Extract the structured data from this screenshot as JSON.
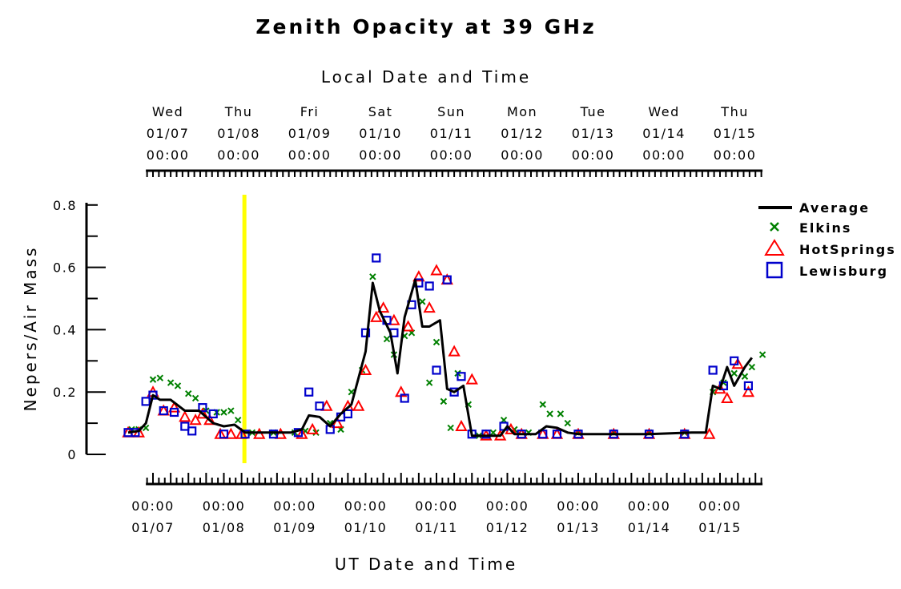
{
  "chart_data": {
    "type": "line",
    "title": "Zenith Opacity at 39 GHz",
    "top_axis_title": "Local Date and Time",
    "xlabel": "UT Date and Time",
    "ylabel": "Nepers/Air Mass",
    "ylim": [
      0,
      0.8
    ],
    "yticks": [
      0,
      0.2,
      0.4,
      0.6,
      0.8
    ],
    "ytick_labels": [
      "0",
      "0.2",
      "0.4",
      "0.6",
      "0.8"
    ],
    "xlim": [
      -0.1,
      8.6
    ],
    "top_ticks": [
      {
        "day": "Wed",
        "date": "01/07",
        "time": "00:00",
        "x": 0.21
      },
      {
        "day": "Thu",
        "date": "01/08",
        "time": "00:00",
        "x": 1.21
      },
      {
        "day": "Fri",
        "date": "01/09",
        "time": "00:00",
        "x": 2.21
      },
      {
        "day": "Sat",
        "date": "01/10",
        "time": "00:00",
        "x": 3.21
      },
      {
        "day": "Sun",
        "date": "01/11",
        "time": "00:00",
        "x": 4.21
      },
      {
        "day": "Mon",
        "date": "01/12",
        "time": "00:00",
        "x": 5.21
      },
      {
        "day": "Tue",
        "date": "01/13",
        "time": "00:00",
        "x": 6.21
      },
      {
        "day": "Wed",
        "date": "01/14",
        "time": "00:00",
        "x": 7.21
      },
      {
        "day": "Thu",
        "date": "01/15",
        "time": "00:00",
        "x": 8.21
      }
    ],
    "bottom_ticks": [
      {
        "time": "00:00",
        "date": "01/07",
        "x": 0
      },
      {
        "time": "00:00",
        "date": "01/08",
        "x": 1
      },
      {
        "time": "00:00",
        "date": "01/09",
        "x": 2
      },
      {
        "time": "00:00",
        "date": "01/10",
        "x": 3
      },
      {
        "time": "00:00",
        "date": "01/11",
        "x": 4
      },
      {
        "time": "00:00",
        "date": "01/12",
        "x": 5
      },
      {
        "time": "00:00",
        "date": "01/13",
        "x": 6
      },
      {
        "time": "00:00",
        "date": "01/14",
        "x": 7
      },
      {
        "time": "00:00",
        "date": "01/15",
        "x": 8
      }
    ],
    "x_units": "days since 01/07 00:00 UT",
    "current_time_marker": {
      "x": 1.29,
      "color": "#ffff00"
    },
    "legend_position": "right",
    "series": [
      {
        "name": "Average",
        "color": "#000000",
        "marker": "line",
        "points": [
          [
            -0.35,
            0.07
          ],
          [
            -0.2,
            0.075
          ],
          [
            -0.1,
            0.1
          ],
          [
            0.0,
            0.19
          ],
          [
            0.1,
            0.175
          ],
          [
            0.25,
            0.175
          ],
          [
            0.45,
            0.14
          ],
          [
            0.65,
            0.14
          ],
          [
            0.85,
            0.1
          ],
          [
            1.0,
            0.09
          ],
          [
            1.15,
            0.095
          ],
          [
            1.3,
            0.07
          ],
          [
            1.6,
            0.07
          ],
          [
            1.95,
            0.07
          ],
          [
            2.1,
            0.08
          ],
          [
            2.2,
            0.125
          ],
          [
            2.35,
            0.12
          ],
          [
            2.5,
            0.09
          ],
          [
            2.65,
            0.13
          ],
          [
            2.8,
            0.16
          ],
          [
            3.0,
            0.33
          ],
          [
            3.1,
            0.55
          ],
          [
            3.2,
            0.46
          ],
          [
            3.35,
            0.39
          ],
          [
            3.45,
            0.26
          ],
          [
            3.55,
            0.44
          ],
          [
            3.7,
            0.56
          ],
          [
            3.8,
            0.41
          ],
          [
            3.9,
            0.41
          ],
          [
            4.05,
            0.43
          ],
          [
            4.15,
            0.21
          ],
          [
            4.25,
            0.2
          ],
          [
            4.38,
            0.22
          ],
          [
            4.5,
            0.06
          ],
          [
            4.9,
            0.06
          ],
          [
            5.0,
            0.09
          ],
          [
            5.1,
            0.065
          ],
          [
            5.4,
            0.065
          ],
          [
            5.55,
            0.09
          ],
          [
            5.7,
            0.085
          ],
          [
            5.85,
            0.07
          ],
          [
            6.0,
            0.065
          ],
          [
            6.5,
            0.065
          ],
          [
            7.0,
            0.065
          ],
          [
            7.6,
            0.07
          ],
          [
            7.8,
            0.07
          ],
          [
            7.9,
            0.22
          ],
          [
            8.0,
            0.21
          ],
          [
            8.1,
            0.28
          ],
          [
            8.2,
            0.22
          ],
          [
            8.35,
            0.28
          ],
          [
            8.45,
            0.31
          ]
        ]
      },
      {
        "name": "Elkins",
        "color": "#008000",
        "marker": "x",
        "points": [
          [
            -0.3,
            0.08
          ],
          [
            -0.2,
            0.08
          ],
          [
            -0.1,
            0.085
          ],
          [
            0.0,
            0.24
          ],
          [
            0.1,
            0.245
          ],
          [
            0.25,
            0.23
          ],
          [
            0.35,
            0.22
          ],
          [
            0.5,
            0.195
          ],
          [
            0.6,
            0.18
          ],
          [
            0.75,
            0.14
          ],
          [
            0.9,
            0.135
          ],
          [
            1.0,
            0.135
          ],
          [
            1.1,
            0.14
          ],
          [
            1.2,
            0.11
          ],
          [
            1.4,
            0.07
          ],
          [
            1.7,
            0.07
          ],
          [
            2.0,
            0.07
          ],
          [
            2.15,
            0.075
          ],
          [
            2.3,
            0.07
          ],
          [
            2.5,
            0.1
          ],
          [
            2.65,
            0.08
          ],
          [
            2.8,
            0.2
          ],
          [
            2.95,
            0.27
          ],
          [
            3.1,
            0.57
          ],
          [
            3.3,
            0.37
          ],
          [
            3.4,
            0.32
          ],
          [
            3.55,
            0.38
          ],
          [
            3.65,
            0.39
          ],
          [
            3.8,
            0.49
          ],
          [
            3.9,
            0.23
          ],
          [
            4.0,
            0.36
          ],
          [
            4.1,
            0.17
          ],
          [
            4.2,
            0.085
          ],
          [
            4.3,
            0.26
          ],
          [
            4.45,
            0.16
          ],
          [
            4.6,
            0.06
          ],
          [
            4.8,
            0.07
          ],
          [
            4.95,
            0.11
          ],
          [
            5.1,
            0.08
          ],
          [
            5.3,
            0.07
          ],
          [
            5.5,
            0.16
          ],
          [
            5.6,
            0.13
          ],
          [
            5.75,
            0.13
          ],
          [
            5.85,
            0.1
          ],
          [
            6.0,
            0.07
          ],
          [
            6.5,
            0.07
          ],
          [
            7.0,
            0.07
          ],
          [
            7.5,
            0.07
          ],
          [
            7.9,
            0.2
          ],
          [
            8.05,
            0.23
          ],
          [
            8.2,
            0.26
          ],
          [
            8.35,
            0.25
          ],
          [
            8.45,
            0.28
          ],
          [
            8.6,
            0.32
          ]
        ]
      },
      {
        "name": "HotSprings",
        "color": "#ff0000",
        "marker": "triangle",
        "points": [
          [
            -0.35,
            0.07
          ],
          [
            -0.2,
            0.07
          ],
          [
            0.0,
            0.2
          ],
          [
            0.15,
            0.14
          ],
          [
            0.3,
            0.15
          ],
          [
            0.45,
            0.12
          ],
          [
            0.6,
            0.11
          ],
          [
            0.7,
            0.13
          ],
          [
            0.8,
            0.11
          ],
          [
            0.95,
            0.065
          ],
          [
            1.1,
            0.065
          ],
          [
            1.25,
            0.065
          ],
          [
            1.5,
            0.065
          ],
          [
            1.8,
            0.065
          ],
          [
            2.1,
            0.065
          ],
          [
            2.25,
            0.08
          ],
          [
            2.45,
            0.155
          ],
          [
            2.6,
            0.1
          ],
          [
            2.75,
            0.155
          ],
          [
            2.9,
            0.155
          ],
          [
            3.0,
            0.27
          ],
          [
            3.15,
            0.44
          ],
          [
            3.25,
            0.47
          ],
          [
            3.4,
            0.43
          ],
          [
            3.5,
            0.2
          ],
          [
            3.6,
            0.41
          ],
          [
            3.75,
            0.57
          ],
          [
            3.9,
            0.47
          ],
          [
            4.0,
            0.59
          ],
          [
            4.15,
            0.56
          ],
          [
            4.25,
            0.33
          ],
          [
            4.35,
            0.09
          ],
          [
            4.5,
            0.24
          ],
          [
            4.7,
            0.06
          ],
          [
            4.9,
            0.06
          ],
          [
            5.05,
            0.08
          ],
          [
            5.2,
            0.065
          ],
          [
            5.5,
            0.065
          ],
          [
            5.7,
            0.065
          ],
          [
            6.0,
            0.065
          ],
          [
            6.5,
            0.065
          ],
          [
            7.0,
            0.065
          ],
          [
            7.5,
            0.065
          ],
          [
            7.85,
            0.065
          ],
          [
            8.0,
            0.21
          ],
          [
            8.1,
            0.18
          ],
          [
            8.25,
            0.29
          ],
          [
            8.4,
            0.2
          ]
        ]
      },
      {
        "name": "Lewisburg",
        "color": "#0000cc",
        "marker": "square",
        "points": [
          [
            -0.35,
            0.07
          ],
          [
            -0.25,
            0.07
          ],
          [
            -0.1,
            0.17
          ],
          [
            0.0,
            0.19
          ],
          [
            0.15,
            0.14
          ],
          [
            0.3,
            0.135
          ],
          [
            0.45,
            0.09
          ],
          [
            0.55,
            0.075
          ],
          [
            0.7,
            0.15
          ],
          [
            0.85,
            0.13
          ],
          [
            1.0,
            0.065
          ],
          [
            1.3,
            0.065
          ],
          [
            1.7,
            0.065
          ],
          [
            2.05,
            0.07
          ],
          [
            2.2,
            0.2
          ],
          [
            2.35,
            0.155
          ],
          [
            2.5,
            0.08
          ],
          [
            2.65,
            0.12
          ],
          [
            2.75,
            0.13
          ],
          [
            3.0,
            0.39
          ],
          [
            3.15,
            0.63
          ],
          [
            3.3,
            0.43
          ],
          [
            3.4,
            0.39
          ],
          [
            3.55,
            0.18
          ],
          [
            3.65,
            0.48
          ],
          [
            3.75,
            0.55
          ],
          [
            3.9,
            0.54
          ],
          [
            4.0,
            0.27
          ],
          [
            4.15,
            0.56
          ],
          [
            4.25,
            0.2
          ],
          [
            4.35,
            0.25
          ],
          [
            4.5,
            0.065
          ],
          [
            4.7,
            0.065
          ],
          [
            4.95,
            0.09
          ],
          [
            5.2,
            0.065
          ],
          [
            5.5,
            0.065
          ],
          [
            5.7,
            0.065
          ],
          [
            6.0,
            0.065
          ],
          [
            6.5,
            0.065
          ],
          [
            7.0,
            0.065
          ],
          [
            7.5,
            0.065
          ],
          [
            7.9,
            0.27
          ],
          [
            8.05,
            0.22
          ],
          [
            8.2,
            0.3
          ],
          [
            8.4,
            0.22
          ]
        ]
      }
    ]
  }
}
